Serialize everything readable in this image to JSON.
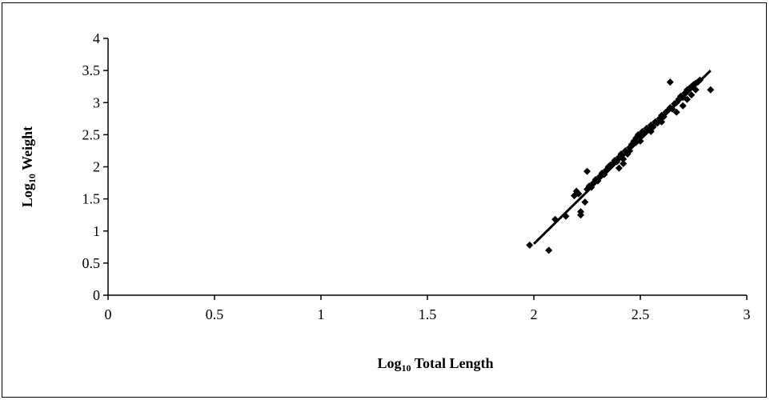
{
  "chart_data": {
    "type": "scatter",
    "xlabel": {
      "main": "Log",
      "sub": "10",
      "rest": " Total Length"
    },
    "ylabel": {
      "main": "Log",
      "sub": "10",
      "rest": " Weight"
    },
    "xlim": [
      0,
      3
    ],
    "ylim": [
      0,
      4
    ],
    "xticks": [
      "0",
      "0.5",
      "1",
      "1.5",
      "2",
      "2.5",
      "3"
    ],
    "yticks": [
      "0",
      "0.5",
      "1",
      "1.5",
      "2",
      "2.5",
      "3",
      "3.5",
      "4"
    ],
    "grid": false,
    "marker": "diamond",
    "color": "#000000",
    "trendline": {
      "x1": 2.0,
      "y1": 0.8,
      "x2": 2.83,
      "y2": 3.5
    },
    "points": [
      [
        1.98,
        0.78
      ],
      [
        2.07,
        0.7
      ],
      [
        2.1,
        1.18
      ],
      [
        2.15,
        1.23
      ],
      [
        2.19,
        1.55
      ],
      [
        2.2,
        1.62
      ],
      [
        2.21,
        1.58
      ],
      [
        2.22,
        1.3
      ],
      [
        2.22,
        1.25
      ],
      [
        2.24,
        1.45
      ],
      [
        2.25,
        1.65
      ],
      [
        2.25,
        1.93
      ],
      [
        2.26,
        1.7
      ],
      [
        2.27,
        1.68
      ],
      [
        2.28,
        1.75
      ],
      [
        2.29,
        1.8
      ],
      [
        2.3,
        1.78
      ],
      [
        2.31,
        1.85
      ],
      [
        2.32,
        1.9
      ],
      [
        2.33,
        1.88
      ],
      [
        2.34,
        1.95
      ],
      [
        2.35,
        2.0
      ],
      [
        2.36,
        2.03
      ],
      [
        2.37,
        2.05
      ],
      [
        2.38,
        2.1
      ],
      [
        2.39,
        2.08
      ],
      [
        2.4,
        2.15
      ],
      [
        2.4,
        1.98
      ],
      [
        2.41,
        2.2
      ],
      [
        2.42,
        2.12
      ],
      [
        2.43,
        2.25
      ],
      [
        2.44,
        2.2
      ],
      [
        2.45,
        2.3
      ],
      [
        2.46,
        2.35
      ],
      [
        2.47,
        2.4
      ],
      [
        2.48,
        2.45
      ],
      [
        2.48,
        2.38
      ],
      [
        2.49,
        2.5
      ],
      [
        2.5,
        2.48
      ],
      [
        2.51,
        2.55
      ],
      [
        2.52,
        2.52
      ],
      [
        2.53,
        2.6
      ],
      [
        2.54,
        2.58
      ],
      [
        2.55,
        2.65
      ],
      [
        2.56,
        2.62
      ],
      [
        2.57,
        2.7
      ],
      [
        2.58,
        2.68
      ],
      [
        2.59,
        2.75
      ],
      [
        2.6,
        2.8
      ],
      [
        2.61,
        2.78
      ],
      [
        2.62,
        2.85
      ],
      [
        2.63,
        2.88
      ],
      [
        2.64,
        2.92
      ],
      [
        2.64,
        3.32
      ],
      [
        2.65,
        2.9
      ],
      [
        2.66,
        2.98
      ],
      [
        2.67,
        3.0
      ],
      [
        2.68,
        3.05
      ],
      [
        2.69,
        3.1
      ],
      [
        2.7,
        3.08
      ],
      [
        2.71,
        3.15
      ],
      [
        2.72,
        3.2
      ],
      [
        2.73,
        3.22
      ],
      [
        2.74,
        3.25
      ],
      [
        2.75,
        3.28
      ],
      [
        2.76,
        3.3
      ],
      [
        2.77,
        3.32
      ],
      [
        2.78,
        3.35
      ],
      [
        2.67,
        2.85
      ],
      [
        2.7,
        2.95
      ],
      [
        2.72,
        3.05
      ],
      [
        2.74,
        3.12
      ],
      [
        2.76,
        3.2
      ],
      [
        2.83,
        3.2
      ],
      [
        2.6,
        2.7
      ],
      [
        2.55,
        2.55
      ],
      [
        2.5,
        2.4
      ],
      [
        2.45,
        2.25
      ],
      [
        2.42,
        2.05
      ]
    ]
  }
}
